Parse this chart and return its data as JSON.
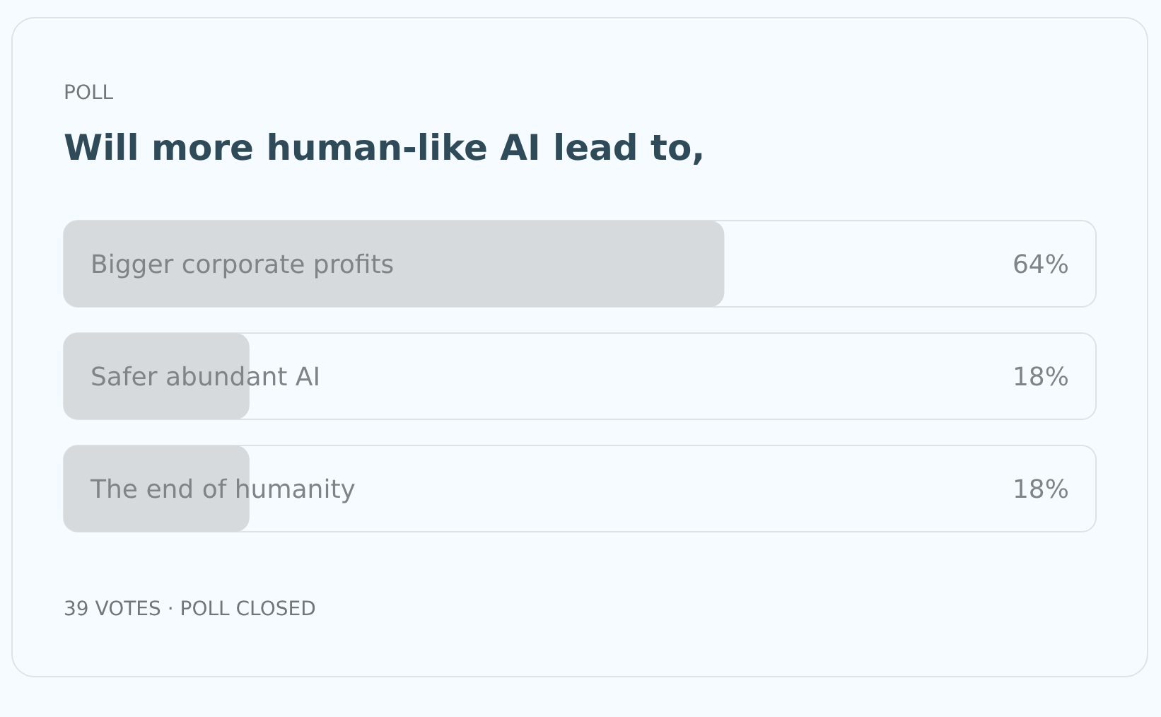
{
  "chart_data": {
    "type": "bar",
    "orientation": "horizontal",
    "subtitle": "POLL",
    "title": "Will more human-like AI lead to,",
    "categories": [
      "Bigger corporate profits",
      "Safer abundant AI",
      "The end of humanity"
    ],
    "values": [
      64,
      18,
      18
    ],
    "value_labels": [
      "64%",
      "18%",
      "18%"
    ],
    "color": "#d6dadd",
    "xlim": [
      0,
      100
    ],
    "annotations": [
      "39 VOTES · POLL CLOSED"
    ]
  }
}
